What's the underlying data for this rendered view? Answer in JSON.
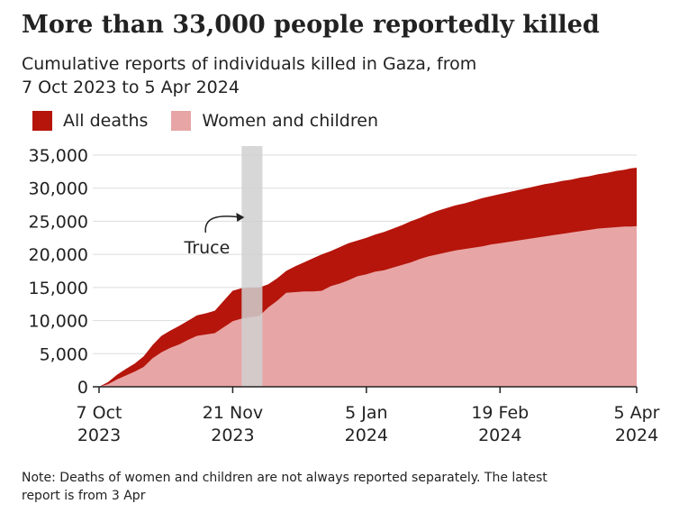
{
  "header": {
    "title": "More than 33,000 people reportedly killed",
    "subtitle_line1": "Cumulative reports of individuals killed in Gaza, from",
    "subtitle_line2": "7 Oct 2023 to 5 Apr 2024"
  },
  "footer": {
    "note_line1": "Note: Deaths of women and children are not always reported separately. The latest",
    "note_line2": "report is from 3 Apr"
  },
  "colors": {
    "all_deaths": "#b5150b",
    "women_children": "#e8a5a5",
    "truce_band": "#d0d0d0",
    "grid": "#dddddd",
    "axis": "#222222"
  },
  "chart_data": {
    "type": "area",
    "title": "More than 33,000 people reportedly killed",
    "subtitle": "Cumulative reports of individuals killed in Gaza, from 7 Oct 2023 to 5 Apr 2024",
    "xlabel": "",
    "ylabel": "",
    "xlim": [
      "2023-10-07",
      "2024-04-05"
    ],
    "ylim": [
      0,
      35000
    ],
    "yticks": [
      0,
      5000,
      10000,
      15000,
      20000,
      25000,
      30000,
      35000
    ],
    "ytick_labels": [
      "0",
      "5,000",
      "10,000",
      "15,000",
      "20,000",
      "25,000",
      "30,000",
      "35,000"
    ],
    "xticks": [
      {
        "date": "2023-10-07",
        "label_line1": "7 Oct",
        "label_line2": "2023"
      },
      {
        "date": "2023-11-21",
        "label_line1": "21 Nov",
        "label_line2": "2023"
      },
      {
        "date": "2024-01-05",
        "label_line1": "5 Jan",
        "label_line2": "2024"
      },
      {
        "date": "2024-02-19",
        "label_line1": "19 Feb",
        "label_line2": "2024"
      },
      {
        "date": "2024-04-05",
        "label_line1": "5 Apr",
        "label_line2": "2024"
      }
    ],
    "grid": true,
    "legend_position": "top-left",
    "series": [
      {
        "name": "All deaths",
        "color": "#b5150b",
        "points": [
          [
            "2023-10-07",
            0
          ],
          [
            "2023-10-10",
            700
          ],
          [
            "2023-10-13",
            1800
          ],
          [
            "2023-10-16",
            2700
          ],
          [
            "2023-10-19",
            3500
          ],
          [
            "2023-10-22",
            4600
          ],
          [
            "2023-10-25",
            6300
          ],
          [
            "2023-10-28",
            7700
          ],
          [
            "2023-10-31",
            8500
          ],
          [
            "2023-11-03",
            9200
          ],
          [
            "2023-11-06",
            10000
          ],
          [
            "2023-11-09",
            10800
          ],
          [
            "2023-11-12",
            11100
          ],
          [
            "2023-11-15",
            11500
          ],
          [
            "2023-11-18",
            13000
          ],
          [
            "2023-11-21",
            14500
          ],
          [
            "2023-11-24",
            14900
          ],
          [
            "2023-11-27",
            15000
          ],
          [
            "2023-11-30",
            15000
          ],
          [
            "2023-12-03",
            15500
          ],
          [
            "2023-12-06",
            16400
          ],
          [
            "2023-12-09",
            17500
          ],
          [
            "2023-12-12",
            18200
          ],
          [
            "2023-12-15",
            18800
          ],
          [
            "2023-12-18",
            19400
          ],
          [
            "2023-12-21",
            20000
          ],
          [
            "2023-12-24",
            20500
          ],
          [
            "2023-12-27",
            21100
          ],
          [
            "2023-12-30",
            21700
          ],
          [
            "2024-01-02",
            22100
          ],
          [
            "2024-01-05",
            22500
          ],
          [
            "2024-01-08",
            23000
          ],
          [
            "2024-01-11",
            23400
          ],
          [
            "2024-01-14",
            23900
          ],
          [
            "2024-01-17",
            24400
          ],
          [
            "2024-01-20",
            25000
          ],
          [
            "2024-01-23",
            25500
          ],
          [
            "2024-01-26",
            26100
          ],
          [
            "2024-01-29",
            26600
          ],
          [
            "2024-02-01",
            27000
          ],
          [
            "2024-02-04",
            27400
          ],
          [
            "2024-02-07",
            27700
          ],
          [
            "2024-02-10",
            28100
          ],
          [
            "2024-02-13",
            28500
          ],
          [
            "2024-02-16",
            28800
          ],
          [
            "2024-02-19",
            29100
          ],
          [
            "2024-02-22",
            29400
          ],
          [
            "2024-02-25",
            29700
          ],
          [
            "2024-02-28",
            30000
          ],
          [
            "2024-03-02",
            30300
          ],
          [
            "2024-03-05",
            30600
          ],
          [
            "2024-03-08",
            30800
          ],
          [
            "2024-03-11",
            31100
          ],
          [
            "2024-03-14",
            31300
          ],
          [
            "2024-03-17",
            31600
          ],
          [
            "2024-03-20",
            31800
          ],
          [
            "2024-03-23",
            32100
          ],
          [
            "2024-03-26",
            32300
          ],
          [
            "2024-03-29",
            32600
          ],
          [
            "2024-04-01",
            32800
          ],
          [
            "2024-04-03",
            33000
          ],
          [
            "2024-04-05",
            33100
          ]
        ]
      },
      {
        "name": "Women and children",
        "color": "#e8a5a5",
        "points": [
          [
            "2023-10-07",
            0
          ],
          [
            "2023-10-10",
            400
          ],
          [
            "2023-10-13",
            1100
          ],
          [
            "2023-10-16",
            1700
          ],
          [
            "2023-10-19",
            2300
          ],
          [
            "2023-10-22",
            3000
          ],
          [
            "2023-10-25",
            4300
          ],
          [
            "2023-10-28",
            5200
          ],
          [
            "2023-10-31",
            5900
          ],
          [
            "2023-11-03",
            6400
          ],
          [
            "2023-11-06",
            7100
          ],
          [
            "2023-11-09",
            7700
          ],
          [
            "2023-11-12",
            7900
          ],
          [
            "2023-11-15",
            8100
          ],
          [
            "2023-11-18",
            9000
          ],
          [
            "2023-11-21",
            9900
          ],
          [
            "2023-11-24",
            10300
          ],
          [
            "2023-11-27",
            10500
          ],
          [
            "2023-11-30",
            10700
          ],
          [
            "2023-12-03",
            12000
          ],
          [
            "2023-12-06",
            13000
          ],
          [
            "2023-12-09",
            14200
          ],
          [
            "2023-12-12",
            14300
          ],
          [
            "2023-12-15",
            14400
          ],
          [
            "2023-12-18",
            14400
          ],
          [
            "2023-12-21",
            14500
          ],
          [
            "2023-12-24",
            15200
          ],
          [
            "2023-12-27",
            15600
          ],
          [
            "2023-12-30",
            16100
          ],
          [
            "2024-01-02",
            16700
          ],
          [
            "2024-01-05",
            17000
          ],
          [
            "2024-01-08",
            17400
          ],
          [
            "2024-01-11",
            17600
          ],
          [
            "2024-01-14",
            18000
          ],
          [
            "2024-01-17",
            18400
          ],
          [
            "2024-01-20",
            18800
          ],
          [
            "2024-01-23",
            19300
          ],
          [
            "2024-01-26",
            19700
          ],
          [
            "2024-01-29",
            20000
          ],
          [
            "2024-02-01",
            20300
          ],
          [
            "2024-02-04",
            20600
          ],
          [
            "2024-02-07",
            20800
          ],
          [
            "2024-02-10",
            21000
          ],
          [
            "2024-02-13",
            21200
          ],
          [
            "2024-02-16",
            21500
          ],
          [
            "2024-02-19",
            21700
          ],
          [
            "2024-02-22",
            21900
          ],
          [
            "2024-02-25",
            22100
          ],
          [
            "2024-02-28",
            22300
          ],
          [
            "2024-03-02",
            22500
          ],
          [
            "2024-03-05",
            22700
          ],
          [
            "2024-03-08",
            22900
          ],
          [
            "2024-03-11",
            23100
          ],
          [
            "2024-03-14",
            23300
          ],
          [
            "2024-03-17",
            23500
          ],
          [
            "2024-03-20",
            23700
          ],
          [
            "2024-03-23",
            23900
          ],
          [
            "2024-03-26",
            24000
          ],
          [
            "2024-03-29",
            24100
          ],
          [
            "2024-04-01",
            24200
          ],
          [
            "2024-04-03",
            24200
          ],
          [
            "2024-04-05",
            24250
          ]
        ]
      }
    ],
    "annotations": [
      {
        "type": "band",
        "label": "Truce",
        "x_start": "2023-11-24",
        "x_end": "2023-12-01"
      }
    ]
  }
}
